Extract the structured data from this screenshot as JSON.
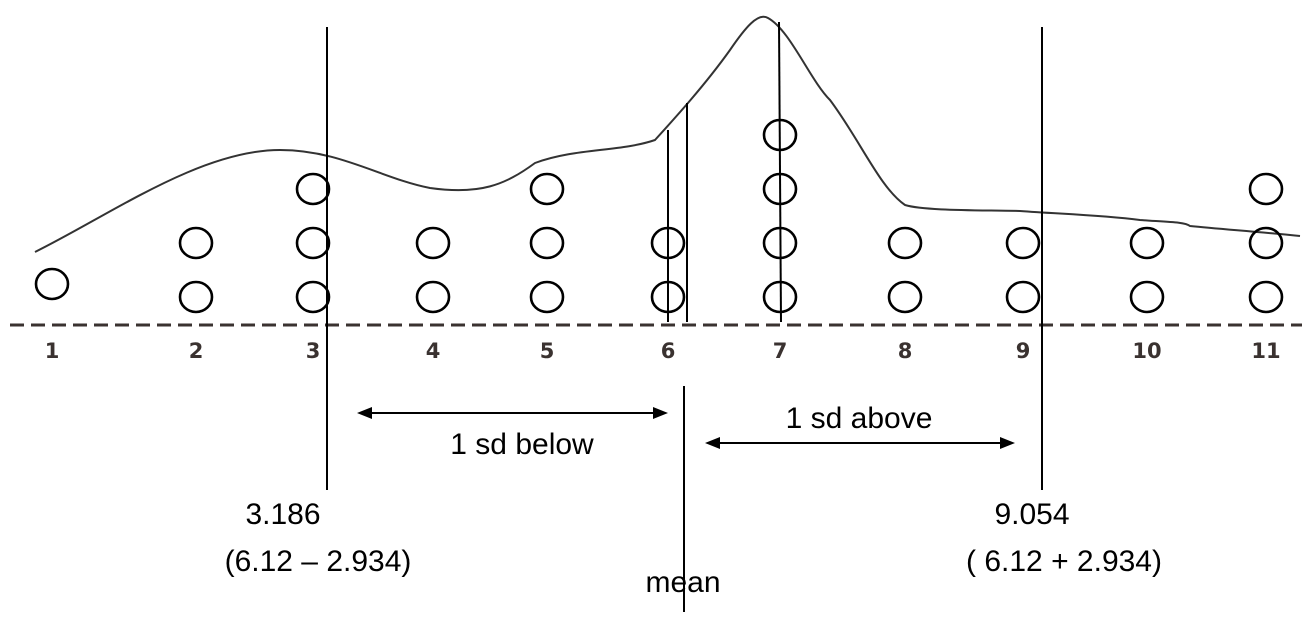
{
  "chart_data": {
    "type": "scatter",
    "x_ticks": [
      "1",
      "2",
      "3",
      "4",
      "5",
      "6",
      "7",
      "8",
      "9",
      "10",
      "11"
    ],
    "xlim": [
      1,
      11
    ],
    "grid": false,
    "points": {
      "x": [
        1,
        2,
        2,
        3,
        3,
        3,
        4,
        4,
        5,
        5,
        5,
        6,
        6,
        7,
        7,
        7,
        7,
        8,
        8,
        9,
        9,
        10,
        10,
        11,
        11,
        11
      ],
      "count": [
        1,
        2,
        2,
        3,
        3,
        3,
        2,
        2,
        3,
        3,
        3,
        2,
        2,
        4,
        4,
        4,
        4,
        2,
        2,
        2,
        2,
        2,
        2,
        3,
        3,
        3
      ]
    },
    "dot_counts": [
      {
        "x": 1,
        "count": 1
      },
      {
        "x": 2,
        "count": 2
      },
      {
        "x": 3,
        "count": 3
      },
      {
        "x": 4,
        "count": 2
      },
      {
        "x": 5,
        "count": 3
      },
      {
        "x": 6,
        "count": 2
      },
      {
        "x": 7,
        "count": 4
      },
      {
        "x": 8,
        "count": 2
      },
      {
        "x": 9,
        "count": 2
      },
      {
        "x": 10,
        "count": 2
      },
      {
        "x": 11,
        "count": 3
      }
    ],
    "mean": 6.12,
    "sd": 2.934,
    "lower": 3.186,
    "upper": 9.054,
    "annotations": {
      "below_label": "1 sd below",
      "above_label": "1 sd above",
      "lower_value": "3.186",
      "lower_formula": "(6.12 – 2.934)",
      "upper_value": "9.054",
      "upper_formula": "( 6.12 + 2.934)",
      "mean_label": "mean"
    }
  }
}
